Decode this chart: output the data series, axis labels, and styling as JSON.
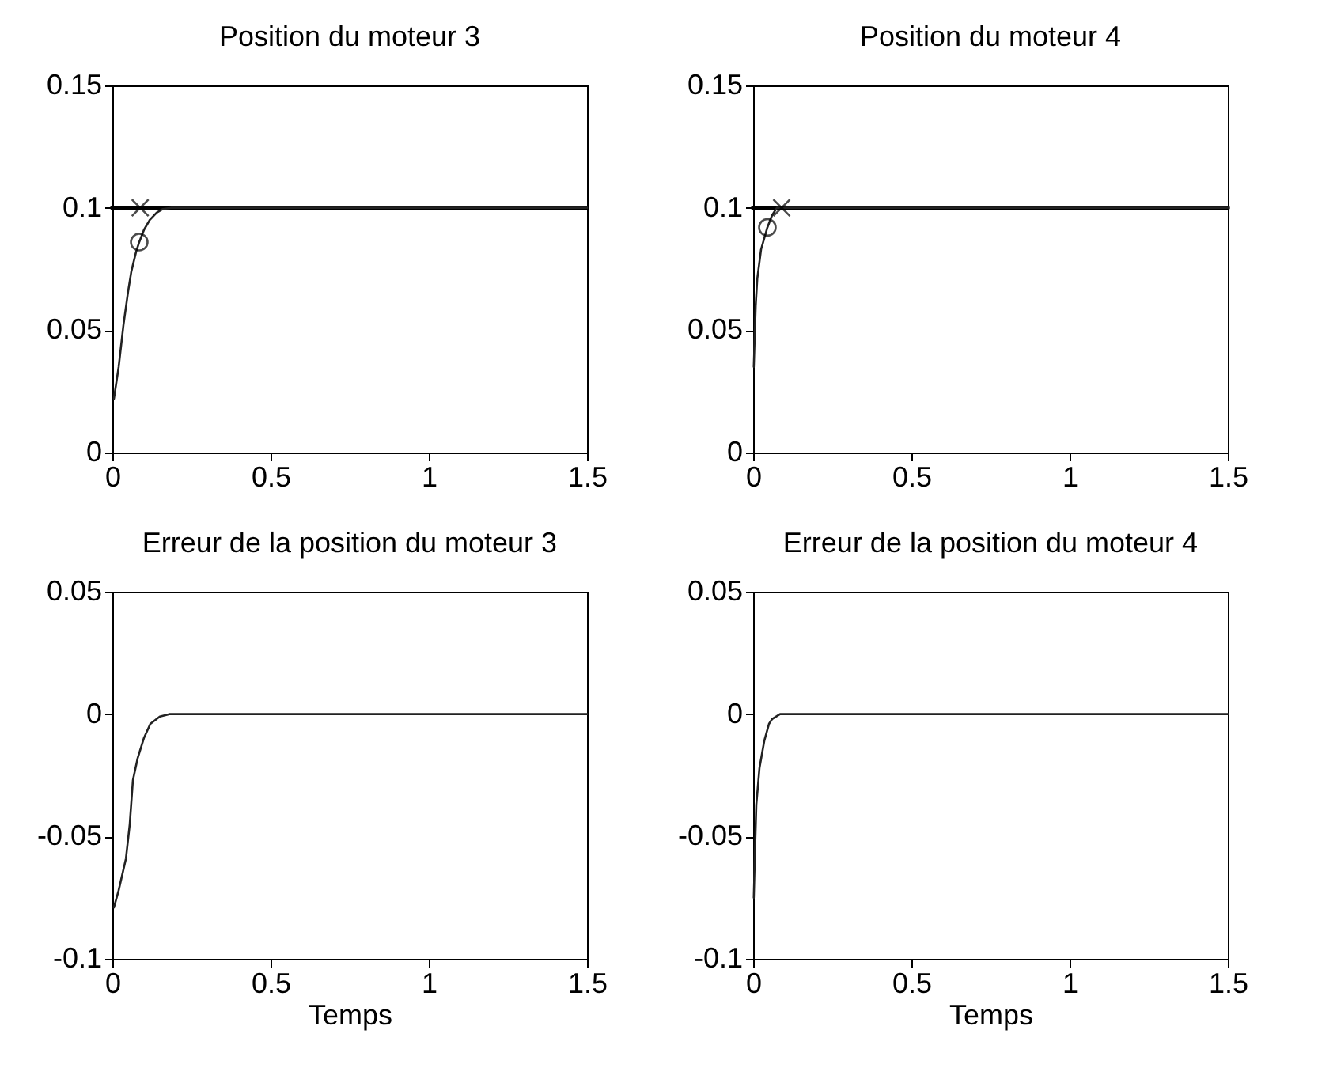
{
  "chart_data": [
    {
      "type": "line",
      "title": "Position du moteur 3",
      "xlim": [
        0,
        1.5
      ],
      "xticks": [
        0,
        0.5,
        1,
        1.5
      ],
      "ylim": [
        0,
        0.15
      ],
      "yticks": [
        0,
        0.05,
        0.1,
        0.15
      ],
      "grid": false,
      "series": [
        {
          "color": "#000000",
          "x": [
            0,
            1.5
          ],
          "values": [
            0.1,
            0.1
          ]
        },
        {
          "color": "#222222",
          "x": [
            0.005,
            0.02,
            0.035,
            0.05,
            0.06,
            0.075,
            0.085,
            0.1,
            0.118,
            0.14,
            0.16,
            0.185,
            0.25,
            0.5,
            1,
            1.5
          ],
          "values": [
            0.022,
            0.035,
            0.052,
            0.066,
            0.074,
            0.082,
            0.086,
            0.091,
            0.095,
            0.098,
            0.0995,
            0.1,
            0.1,
            0.1,
            0.1,
            0.1
          ]
        },
        {
          "type": "scatter",
          "marker": "cross",
          "color": "#000000",
          "x": [
            0.088
          ],
          "values": [
            0.1
          ]
        },
        {
          "type": "scatter",
          "marker": "circle",
          "color": "#000000",
          "x": [
            0.085
          ],
          "values": [
            0.086
          ]
        }
      ]
    },
    {
      "type": "line",
      "title": "Position du moteur 4",
      "xlim": [
        0,
        1.5
      ],
      "xticks": [
        0,
        0.5,
        1,
        1.5
      ],
      "ylim": [
        0,
        0.15
      ],
      "yticks": [
        0,
        0.05,
        0.1,
        0.15
      ],
      "series": [
        {
          "color": "#000000",
          "x": [
            0,
            1.5
          ],
          "values": [
            0.1,
            0.1
          ]
        },
        {
          "color": "#222222",
          "x": [
            0.002,
            0.008,
            0.013,
            0.025,
            0.045,
            0.06,
            0.075,
            0.1,
            0.5,
            1,
            1.5
          ],
          "values": [
            0.035,
            0.06,
            0.071,
            0.083,
            0.092,
            0.097,
            0.1,
            0.1,
            0.1,
            0.1,
            0.1
          ]
        },
        {
          "type": "scatter",
          "marker": "cross",
          "color": "#000000",
          "x": [
            0.09
          ],
          "values": [
            0.1
          ]
        },
        {
          "type": "scatter",
          "marker": "circle",
          "color": "#000000",
          "x": [
            0.045
          ],
          "values": [
            0.092
          ]
        }
      ]
    },
    {
      "type": "line",
      "title": "Erreur de la position du moteur 3",
      "xlabel": "Temps",
      "xlim": [
        0,
        1.5
      ],
      "xticks": [
        0,
        0.5,
        1,
        1.5
      ],
      "ylim": [
        -0.1,
        0.05
      ],
      "yticks": [
        -0.1,
        -0.05,
        0,
        0.05
      ],
      "series": [
        {
          "color": "#222222",
          "x": [
            0.005,
            0.02,
            0.043,
            0.055,
            0.065,
            0.08,
            0.1,
            0.12,
            0.15,
            0.18,
            0.23,
            0.5,
            1,
            1.5
          ],
          "values": [
            -0.079,
            -0.072,
            -0.059,
            -0.045,
            -0.027,
            -0.018,
            -0.0097,
            -0.004,
            -0.001,
            0,
            0,
            0,
            0,
            0
          ]
        }
      ]
    },
    {
      "type": "line",
      "title": "Erreur de la position du moteur 4",
      "xlabel": "Temps",
      "xlim": [
        0,
        1.5
      ],
      "xticks": [
        0,
        0.5,
        1,
        1.5
      ],
      "ylim": [
        -0.1,
        0.05
      ],
      "yticks": [
        -0.1,
        -0.05,
        0,
        0.05
      ],
      "series": [
        {
          "color": "#222222",
          "x": [
            0.002,
            0.006,
            0.01,
            0.02,
            0.035,
            0.05,
            0.06,
            0.085,
            0.5,
            1,
            1.5
          ],
          "values": [
            -0.075,
            -0.055,
            -0.037,
            -0.022,
            -0.011,
            -0.004,
            -0.002,
            0,
            0,
            0,
            0
          ]
        }
      ]
    }
  ]
}
